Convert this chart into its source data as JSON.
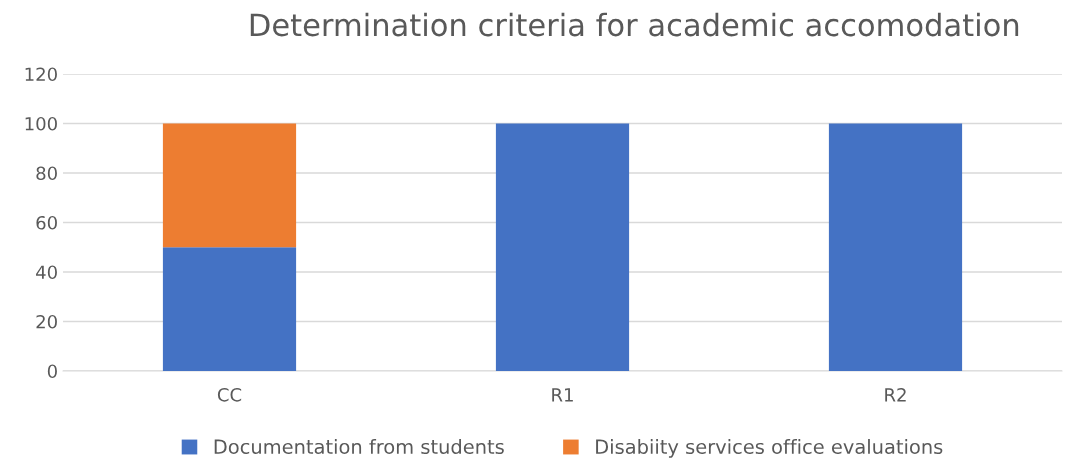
{
  "chart_data": {
    "type": "bar",
    "title": "Determination criteria for academic accomodation",
    "categories": [
      "CC",
      "R1",
      "R2"
    ],
    "stacked": true,
    "series": [
      {
        "name": "Documentation from students",
        "color": "#4472c4",
        "values": [
          50,
          100,
          100
        ]
      },
      {
        "name": "Disabiity services office evaluations",
        "color": "#ed7d31",
        "values": [
          50,
          0,
          0
        ]
      }
    ],
    "ylim": [
      0,
      120
    ],
    "yticks": [
      0,
      20,
      40,
      60,
      80,
      100,
      120
    ],
    "grid": "y",
    "legend": "bottom"
  }
}
